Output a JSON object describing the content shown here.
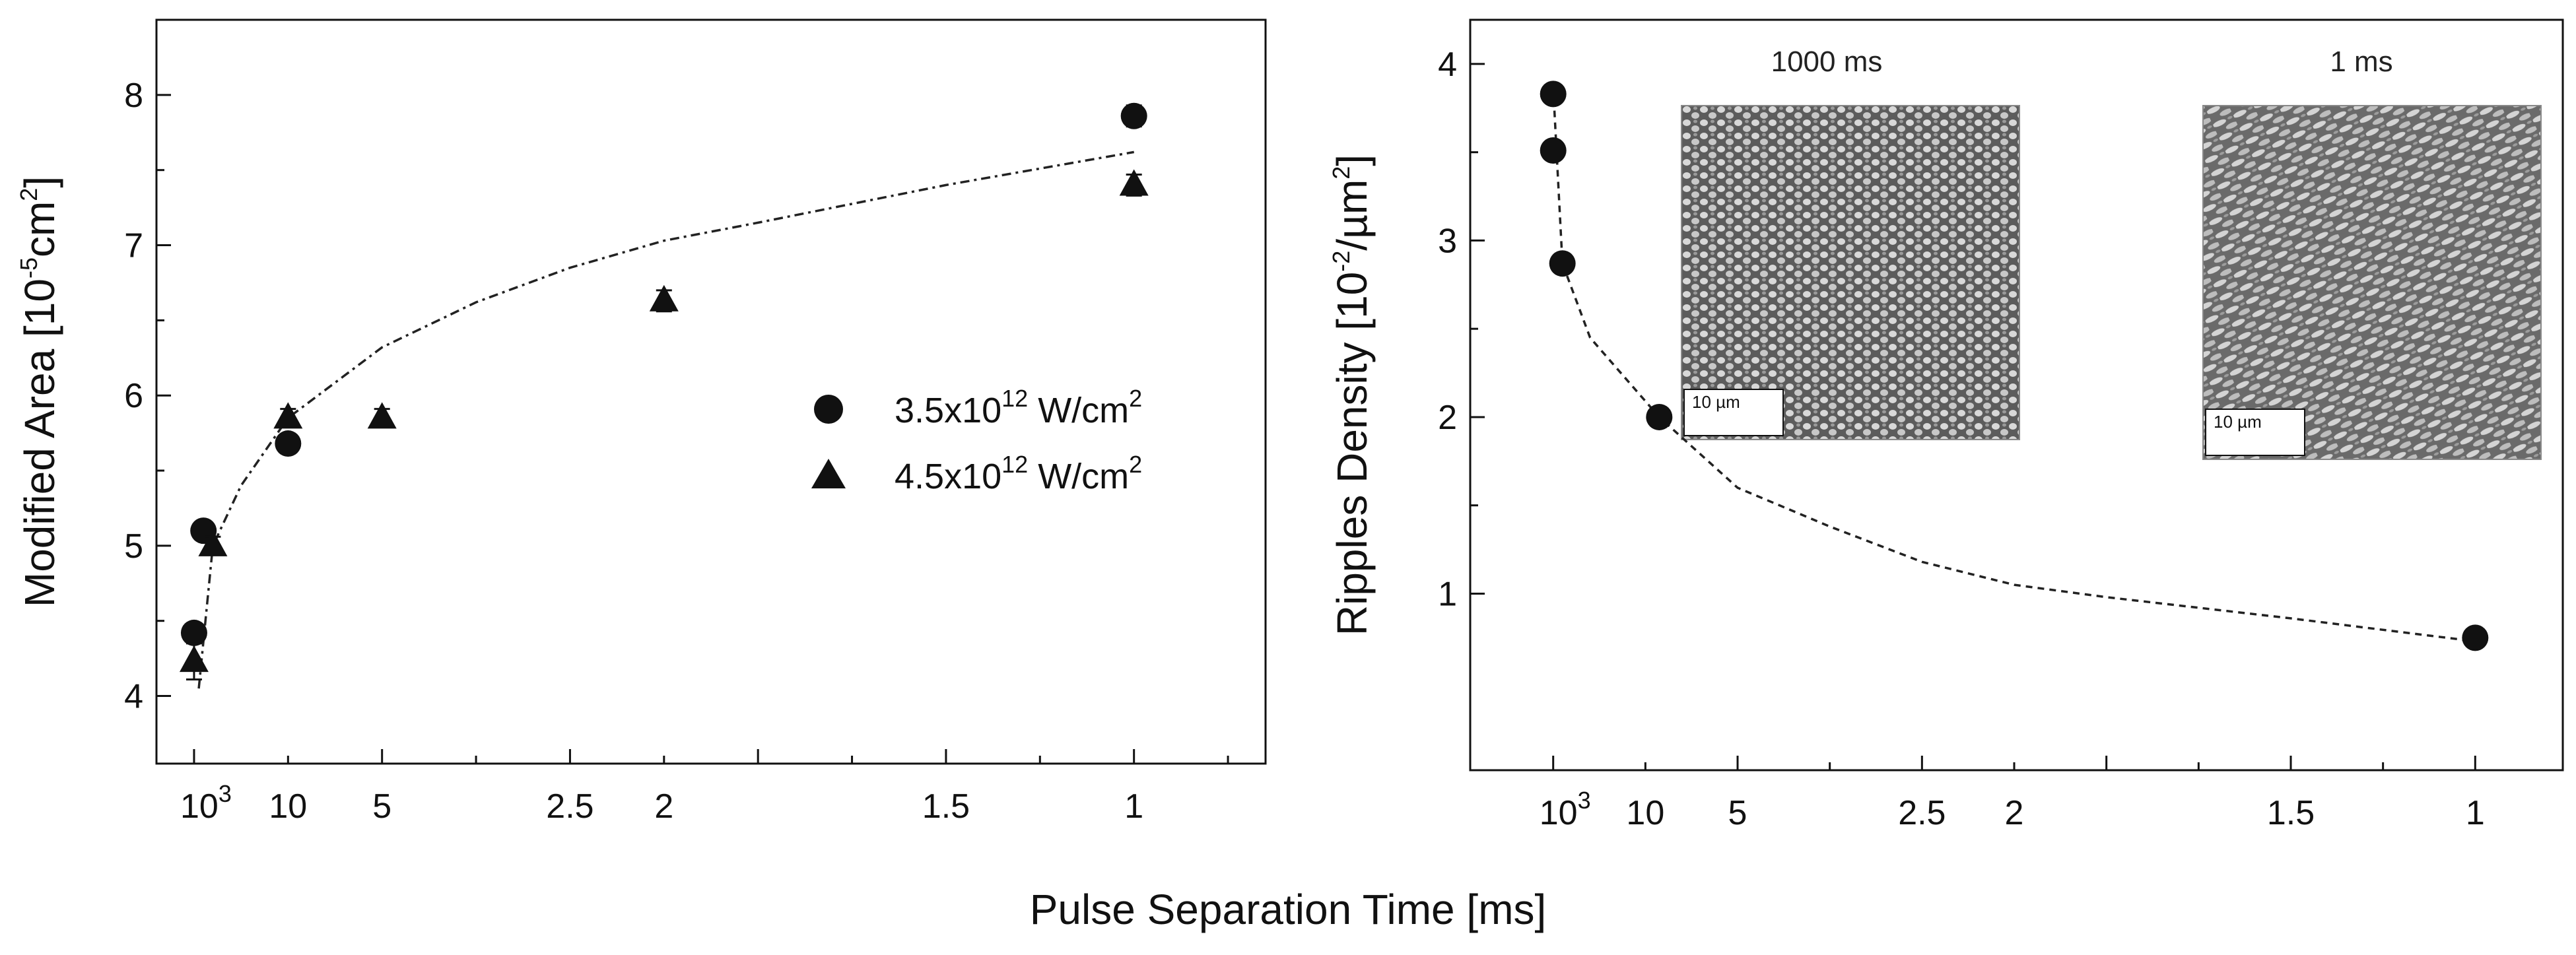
{
  "shared": {
    "xlabel": "Pulse Separation Time [ms]"
  },
  "chart_data": [
    {
      "type": "scatter",
      "id": "left",
      "title": "",
      "ylabel": "Modified Area [10-5cm2]",
      "ylabel_parts": {
        "base": "Modified Area [10",
        "exp1": "-5",
        "mid": "cm",
        "exp2": "2",
        "end": "]"
      },
      "ylim": [
        3.55,
        8.5
      ],
      "y_ticks": [
        4,
        5,
        6,
        7,
        8
      ],
      "x_ticks": [
        {
          "label": "10",
          "sup": "3",
          "pos": 0
        },
        {
          "label": "10",
          "sup": "",
          "pos": 1
        },
        {
          "label": "5",
          "sup": "",
          "pos": 2
        },
        {
          "label": "2.5",
          "sup": "",
          "pos": 4
        },
        {
          "label": "2",
          "sup": "",
          "pos": 5
        },
        {
          "label": "1.5",
          "sup": "",
          "pos": 8
        },
        {
          "label": "1",
          "sup": "",
          "pos": 10
        }
      ],
      "xlim": [
        -0.4,
        11.4
      ],
      "series": [
        {
          "name": "3.5x10^12 W/cm^2",
          "legend": {
            "base": "3.5x10",
            "exp": "12",
            "unit": " W/cm",
            "unit_exp": "2"
          },
          "marker": "circle",
          "points": [
            {
              "x": 0.0,
              "y": 4.42,
              "err": 0.06
            },
            {
              "x": 0.1,
              "y": 5.1,
              "err": 0.06
            },
            {
              "x": 1.0,
              "y": 5.68,
              "err": 0.06
            },
            {
              "x": 10.0,
              "y": 7.86,
              "err": 0.07
            }
          ]
        },
        {
          "name": "4.5x10^12 W/cm^2",
          "legend": {
            "base": "4.5x10",
            "exp": "12",
            "unit": " W/cm",
            "unit_exp": "2"
          },
          "marker": "triangle",
          "points": [
            {
              "x": 0.0,
              "y": 4.23,
              "err": 0.12
            },
            {
              "x": 0.2,
              "y": 5.0,
              "err": 0.06
            },
            {
              "x": 1.0,
              "y": 5.85,
              "err": 0.06
            },
            {
              "x": 2.0,
              "y": 5.85,
              "err": 0.06
            },
            {
              "x": 5.0,
              "y": 6.63,
              "err": 0.07
            },
            {
              "x": 10.0,
              "y": 7.4,
              "err": 0.07
            }
          ]
        }
      ],
      "fit_line": [
        [
          0.05,
          4.05
        ],
        [
          0.2,
          5.0
        ],
        [
          0.5,
          5.4
        ],
        [
          1.0,
          5.85
        ],
        [
          2.0,
          6.32
        ],
        [
          3.0,
          6.62
        ],
        [
          4.0,
          6.85
        ],
        [
          5.0,
          7.03
        ],
        [
          6.0,
          7.15
        ],
        [
          8.0,
          7.4
        ],
        [
          10.0,
          7.62
        ]
      ]
    },
    {
      "type": "line",
      "id": "right",
      "title": "",
      "ylabel": "Ripples Density [10-2/µm2]",
      "ylabel_parts": {
        "base": "Ripples Density [10",
        "exp1": "-2",
        "mid": "/µm",
        "exp2": "2",
        "end": "]"
      },
      "ylim": [
        0.0,
        4.25
      ],
      "y_ticks": [
        1,
        2,
        3,
        4
      ],
      "x_ticks": [
        {
          "label": "10",
          "sup": "3",
          "pos": 0
        },
        {
          "label": "10",
          "sup": "",
          "pos": 1
        },
        {
          "label": "5",
          "sup": "",
          "pos": 2
        },
        {
          "label": "2.5",
          "sup": "",
          "pos": 4
        },
        {
          "label": "2",
          "sup": "",
          "pos": 5
        },
        {
          "label": "1.5",
          "sup": "",
          "pos": 8
        },
        {
          "label": "1",
          "sup": "",
          "pos": 10
        }
      ],
      "xlim": [
        -0.9,
        10.95
      ],
      "series": [
        {
          "name": "Ripples Density",
          "marker": "circle",
          "points": [
            {
              "x": 0.0,
              "y": 3.83
            },
            {
              "x": 0.0,
              "y": 3.51
            },
            {
              "x": 0.1,
              "y": 2.87
            },
            {
              "x": 1.15,
              "y": 2.0
            },
            {
              "x": 10.0,
              "y": 0.75
            }
          ]
        }
      ],
      "fit_line": [
        [
          0.0,
          3.87
        ],
        [
          0.1,
          2.87
        ],
        [
          0.4,
          2.45
        ],
        [
          1.15,
          2.0
        ],
        [
          2.0,
          1.6
        ],
        [
          3.0,
          1.38
        ],
        [
          4.0,
          1.18
        ],
        [
          5.0,
          1.05
        ],
        [
          6.0,
          0.98
        ],
        [
          8.0,
          0.86
        ],
        [
          10.0,
          0.73
        ]
      ],
      "insets": [
        {
          "title": "1000 ms",
          "scale_bar": "10 µm",
          "pattern": "dense-grains"
        },
        {
          "title": "1 ms",
          "scale_bar": "10 µm",
          "pattern": "elongated-ripples"
        }
      ]
    }
  ]
}
